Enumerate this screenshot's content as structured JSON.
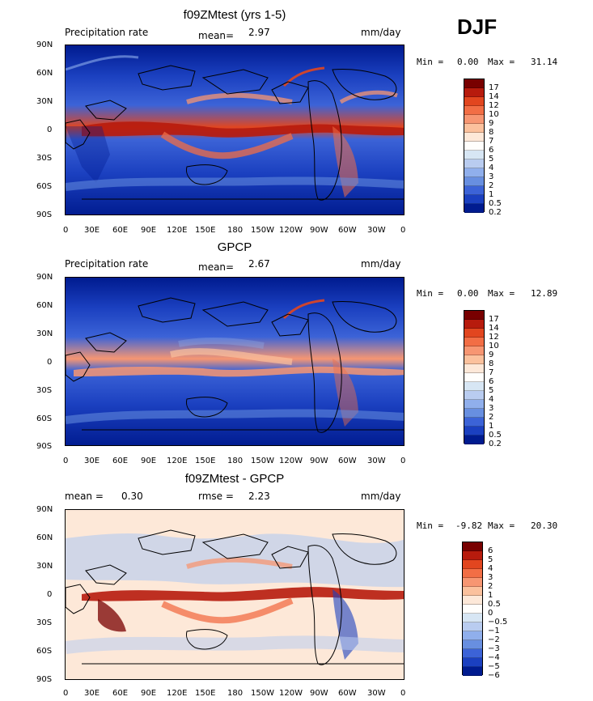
{
  "season": "DJF",
  "panels": [
    {
      "id": "model",
      "title": "f09ZMtest (yrs 1-5)",
      "left_label": "Precipitation rate",
      "stat_label": "mean=",
      "stat_value": "2.97",
      "units": "mm/day",
      "min_label": "Min =",
      "min_value": "0.00",
      "max_label": "Max =",
      "max_value": "31.14",
      "colorbar_labels": [
        "17",
        "14",
        "12",
        "10",
        "9",
        "8",
        "7",
        "6",
        "5",
        "4",
        "3",
        "2",
        "1",
        "0.5",
        "0.2"
      ],
      "colors": [
        "#780000",
        "#b71b0d",
        "#e2461f",
        "#f26e45",
        "#f79672",
        "#fbc19d",
        "#fde8d8",
        "#fffefc",
        "#d7e6f4",
        "#b9ccf0",
        "#90afec",
        "#688fe0",
        "#3c63d7",
        "#1b40c0",
        "#001b8f",
        "#00125c"
      ]
    },
    {
      "id": "obs",
      "title": "GPCP",
      "left_label": "Precipitation rate",
      "stat_label": "mean=",
      "stat_value": "2.67",
      "units": "mm/day",
      "min_label": "Min =",
      "min_value": "0.00",
      "max_label": "Max =",
      "max_value": "12.89",
      "colorbar_labels": [
        "17",
        "14",
        "12",
        "10",
        "9",
        "8",
        "7",
        "6",
        "5",
        "4",
        "3",
        "2",
        "1",
        "0.5",
        "0.2"
      ],
      "colors": [
        "#780000",
        "#b71b0d",
        "#e2461f",
        "#f26e45",
        "#f79672",
        "#fbc19d",
        "#fde8d8",
        "#fffefc",
        "#d7e6f4",
        "#b9ccf0",
        "#90afec",
        "#688fe0",
        "#3c63d7",
        "#1b40c0",
        "#001b8f",
        "#00125c"
      ]
    },
    {
      "id": "diff",
      "title": "f09ZMtest - GPCP",
      "left_label": "mean =",
      "left_value": "0.30",
      "stat_label": "rmse =",
      "stat_value": "2.23",
      "units": "mm/day",
      "min_label": "Min =",
      "min_value": "-9.82",
      "max_label": "Max =",
      "max_value": "20.30",
      "colorbar_labels": [
        "6",
        "5",
        "4",
        "3",
        "2",
        "1",
        "0.5",
        "0",
        "−0.5",
        "−1",
        "−2",
        "−3",
        "−4",
        "−5",
        "−6"
      ],
      "colors": [
        "#780000",
        "#b71b0d",
        "#e2461f",
        "#f26e45",
        "#f79672",
        "#fbc19d",
        "#fde8d8",
        "#fffefc",
        "#d7e6f4",
        "#b9ccf0",
        "#90afec",
        "#688fe0",
        "#3c63d7",
        "#1b40c0",
        "#001b8f",
        "#00125c"
      ]
    }
  ],
  "lat_labels": [
    "90N",
    "60N",
    "30N",
    "0",
    "30S",
    "60S",
    "90S"
  ],
  "lon_labels": [
    "0",
    "30E",
    "60E",
    "90E",
    "120E",
    "150E",
    "180",
    "150W",
    "120W",
    "90W",
    "60W",
    "30W",
    "0"
  ]
}
